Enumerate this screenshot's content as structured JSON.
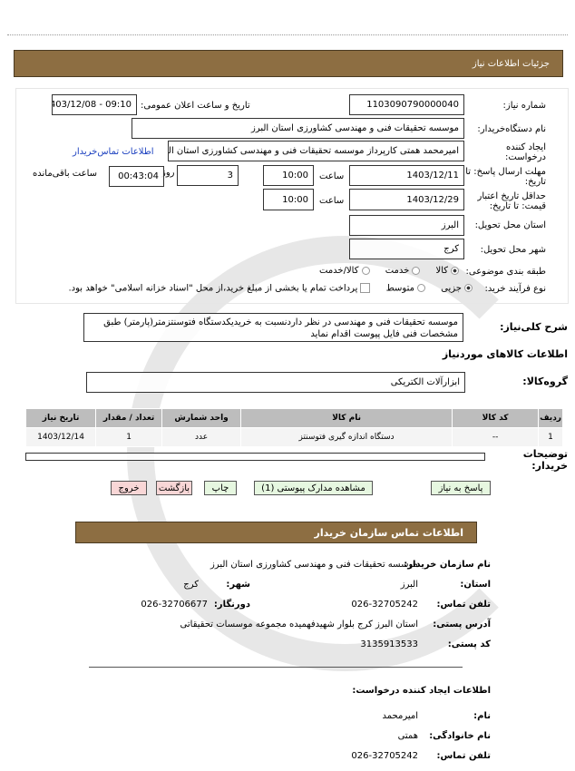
{
  "colors": {
    "header_bar": "#8d6e42",
    "green_button": "#e6f7e0",
    "red_button": "#f8d6d6",
    "table_header": "#bdbdbd"
  },
  "header": {
    "title": "جزئیات اطلاعات نیاز"
  },
  "form": {
    "need_number_label": "شماره نیاز:",
    "need_number": "1103090790000040",
    "announce_label": "تاریخ و ساعت اعلان عمومی:",
    "announce_value": "1403/12/08 - 09:10",
    "buyer_org_label": "نام دستگاه‌خریدار:",
    "buyer_org": "موسسه تحقیقات فنی و مهندسی  کشاورزی استان البرز",
    "creator_label": "ایجاد کننده درخواست:",
    "creator": "امیرمحمد همتی کارپرداز موسسه تحقیقات فنی و مهندسی  کشاورزی استان البرز",
    "contact_link": "اطلاعات تماس‌خریدار",
    "deadline_label": "مهلت ارسال پاسخ: تا تاریخ:",
    "deadline_date": "1403/12/11",
    "time_label": "ساعت",
    "deadline_time": "10:00",
    "days": "3",
    "days_label": "روز",
    "remaining": "00:43:04",
    "remaining_label": "ساعت باقی‌مانده",
    "validity_label": "حداقل تاریخ اعتبار قیمت: تا تاریخ:",
    "validity_date": "1403/12/29",
    "validity_time": "10:00",
    "province_label": "استان محل تحویل:",
    "province": "البرز",
    "city_label": "شهر محل تحویل:",
    "city": "کرج",
    "category_label": "طبقه بندی موضوعی:",
    "category_options": [
      "کالا",
      "خدمت",
      "کالا/خدمت"
    ],
    "category_selected": "کالا",
    "process_label": "نوع فرآیند خرید:",
    "process_options": [
      "جزیی",
      "متوسط"
    ],
    "process_selected": "جزیی",
    "payment_note": "پرداخت تمام یا بخشی از مبلغ خرید،از محل \"اسناد خزانه اسلامی\" خواهد بود."
  },
  "description": {
    "label": "شرح کلی‌نیاز:",
    "text": "موسسه تحقیقات فنی و مهندسی در نظر داردنسبت به خریدیکدستگاه  فتوسنتزمتر(پارمتر) طبق مشخصات فنی فایل پیوست اقدام نماید"
  },
  "goods": {
    "section_title": "اطلاعات کالاهای موردنیاز",
    "group_label": "گروه‌کالا:",
    "group": "ابزارآلات  الکتریکی",
    "columns": [
      "ردیف",
      "کد کالا",
      "نام کالا",
      "واحد شمارش",
      "تعداد / مقدار",
      "تاریخ نیاز"
    ],
    "rows": [
      [
        "1",
        "--",
        "دستگاه اندازه گیری فتوسنتز",
        "عدد",
        "1",
        "1403/12/14"
      ]
    ]
  },
  "buyer_notes_label": "توضیحات خریدار:",
  "buttons": {
    "respond": "پاسخ به نیاز",
    "attachments": "مشاهده مدارک پیوستی (1)",
    "print": "چاپ",
    "back": "بازگشت",
    "exit": "خروج"
  },
  "contact": {
    "title": "اطلاعات تماس سازمان خریدار",
    "org_label": "نام سازمان خریدار:",
    "org": "موسسه تحقیقات فنی و مهندسی کشاورزی استان البرز",
    "province_label": "استان:",
    "province": "البرز",
    "city_label": "شهر:",
    "city": "کرج",
    "phone_label": "تلفن تماس:",
    "phone": "026-32705242",
    "fax_label": "دورنگار:",
    "fax": "026-32706677",
    "address_label": "آدرس پستی:",
    "address": "استان البرز کرج بلوار شهیدفهمیده مجموعه موسسات تحقیقاتی",
    "postal_label": "کد پستی:",
    "postal": "3135913533",
    "creator_title": "اطلاعات ایجاد کننده درخواست:",
    "name_label": "نام:",
    "name": "امیرمحمد",
    "family_label": "نام خانوادگی:",
    "family": "همتی",
    "creator_phone_label": "تلفن تماس:",
    "creator_phone": "026-32705242"
  }
}
